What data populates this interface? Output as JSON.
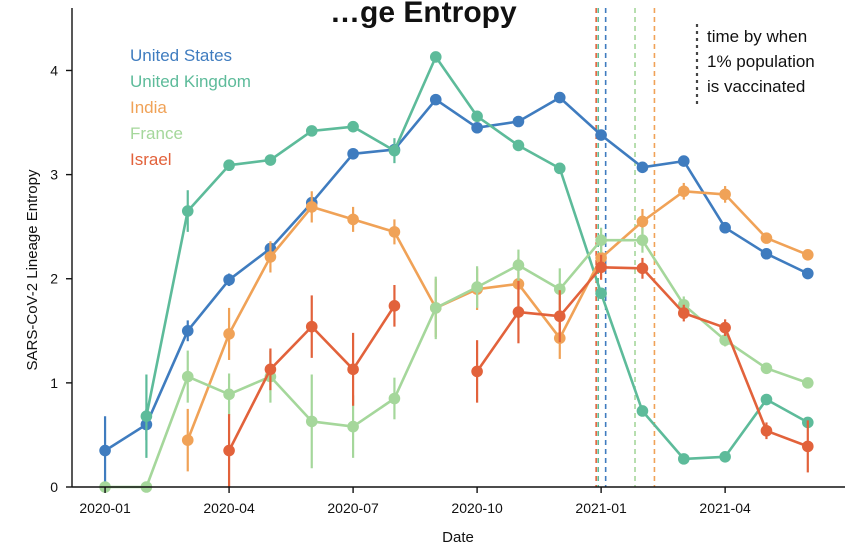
{
  "chart_data": {
    "type": "line",
    "title": "…ge Entropy",
    "xlabel": "Date",
    "ylabel": "SARS-CoV-2 Lineage Entropy",
    "ylim": [
      0,
      4.6
    ],
    "yticks": [
      0,
      1,
      2,
      3,
      4
    ],
    "xticks": [
      {
        "label": "2020-01",
        "month": 0
      },
      {
        "label": "2020-04",
        "month": 3
      },
      {
        "label": "2020-07",
        "month": 6
      },
      {
        "label": "2020-10",
        "month": 9
      },
      {
        "label": "2021-01",
        "month": 12
      },
      {
        "label": "2021-04",
        "month": 15
      }
    ],
    "xlim_months": [
      -0.8,
      17.9
    ],
    "legend_position": "top-left",
    "grid": false,
    "series": [
      {
        "name": "United States",
        "color": "#3f7cbf",
        "months": [
          0,
          1,
          2,
          3,
          4,
          5,
          6,
          7,
          8,
          9,
          10,
          11,
          12,
          13,
          14,
          15,
          16,
          17
        ],
        "values": [
          0.35,
          0.6,
          1.5,
          1.99,
          2.29,
          2.73,
          3.2,
          3.24,
          3.72,
          3.45,
          3.51,
          3.74,
          3.38,
          3.07,
          3.13,
          2.49,
          2.24,
          2.05
        ],
        "errors": [
          0.33,
          0.15,
          0.1,
          0.06,
          0.05,
          0.05,
          0.05,
          0.05,
          0.05,
          0.05,
          0.05,
          0.05,
          0.05,
          0.05,
          0.05,
          0.05,
          0.05,
          0.05
        ]
      },
      {
        "name": "United Kingdom",
        "color": "#5dbb9a",
        "months": [
          1,
          2,
          3,
          4,
          5,
          6,
          7,
          8,
          9,
          10,
          11,
          12,
          13,
          14,
          15,
          16,
          17
        ],
        "values": [
          0.68,
          2.65,
          3.09,
          3.14,
          3.42,
          3.46,
          3.23,
          4.13,
          3.56,
          3.28,
          3.06,
          1.86,
          0.73,
          0.27,
          0.29,
          0.84,
          0.62
        ],
        "errors": [
          0.4,
          0.2,
          0.05,
          0.05,
          0.05,
          0.05,
          0.12,
          0.05,
          0.05,
          0.05,
          0.05,
          0.05,
          0.05,
          0.05,
          0.05,
          0.05,
          0.05
        ]
      },
      {
        "name": "India",
        "color": "#f0a257",
        "months": [
          2,
          3,
          4,
          5,
          6,
          7,
          8,
          9,
          10,
          11,
          12,
          13,
          14,
          15,
          16,
          17
        ],
        "values": [
          0.45,
          1.47,
          2.21,
          2.69,
          2.57,
          2.45,
          1.72,
          1.9,
          1.95,
          1.43,
          2.2,
          2.55,
          2.84,
          2.81,
          2.39,
          2.23
        ],
        "errors": [
          0.3,
          0.25,
          0.15,
          0.15,
          0.12,
          0.12,
          0.28,
          0.2,
          0.25,
          0.2,
          0.12,
          0.12,
          0.08,
          0.08,
          0.05,
          0.05
        ]
      },
      {
        "name": "France",
        "color": "#a5d79b",
        "months": [
          0,
          1,
          2,
          3,
          4,
          5,
          6,
          7,
          8,
          9,
          10,
          11,
          12,
          13,
          14,
          15,
          16,
          17
        ],
        "values": [
          0.0,
          0.0,
          1.06,
          0.89,
          1.06,
          0.63,
          0.58,
          0.85,
          1.72,
          1.92,
          2.13,
          1.9,
          2.37,
          2.37,
          1.75,
          1.41,
          1.14,
          1.0
        ],
        "errors": [
          0.0,
          0.0,
          0.25,
          0.2,
          0.25,
          0.45,
          0.3,
          0.2,
          0.3,
          0.2,
          0.15,
          0.2,
          0.12,
          0.12,
          0.08,
          0.06,
          0.05,
          0.05
        ]
      },
      {
        "name": "Israel",
        "color": "#e2623b",
        "months": [
          3,
          4,
          5,
          6,
          7,
          8,
          9,
          10,
          11,
          12,
          13,
          14,
          15,
          16,
          17
        ],
        "values": [
          0.35,
          1.13,
          1.54,
          1.13,
          1.74,
          null,
          1.11,
          1.68,
          1.64,
          2.11,
          2.1,
          1.67,
          1.53,
          0.54,
          0.39
        ],
        "errors": [
          0.35,
          0.2,
          0.3,
          0.35,
          0.2,
          null,
          0.3,
          0.3,
          0.25,
          0.12,
          0.1,
          0.08,
          0.08,
          0.08,
          0.25
        ]
      }
    ],
    "vaccination_lines": [
      {
        "series": "Israel",
        "month": 11.88,
        "color": "#e2623b"
      },
      {
        "series": "United Kingdom",
        "month": 11.93,
        "color": "#5dbb9a"
      },
      {
        "series": "United States",
        "month": 12.11,
        "color": "#3f7cbf"
      },
      {
        "series": "France",
        "month": 12.82,
        "color": "#a5d79b"
      },
      {
        "series": "India",
        "month": 13.29,
        "color": "#f0a257"
      }
    ],
    "annotation": {
      "lines": [
        "time by when",
        "1% population",
        "is vaccinated"
      ],
      "marker_color": "#444444"
    }
  }
}
